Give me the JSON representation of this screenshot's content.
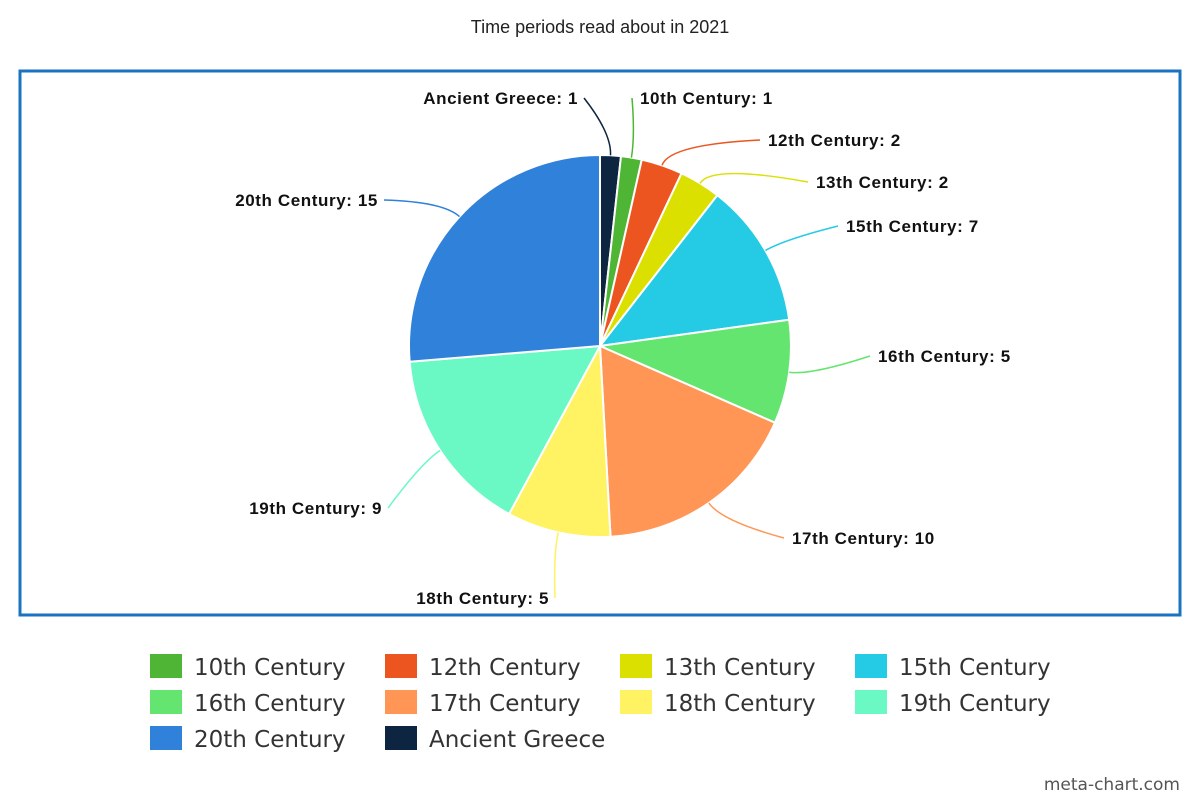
{
  "chart_data": {
    "type": "pie",
    "title": "Time periods read about in 2021",
    "slices": [
      {
        "label": "Ancient Greece",
        "value": 1,
        "color": "#0d2540"
      },
      {
        "label": "10th Century",
        "value": 1,
        "color": "#4fb535"
      },
      {
        "label": "12th Century",
        "value": 2,
        "color": "#ec5520"
      },
      {
        "label": "13th Century",
        "value": 2,
        "color": "#dbe000"
      },
      {
        "label": "15th Century",
        "value": 7,
        "color": "#25cbe5"
      },
      {
        "label": "16th Century",
        "value": 5,
        "color": "#64e56f"
      },
      {
        "label": "17th Century",
        "value": 10,
        "color": "#ff9655"
      },
      {
        "label": "18th Century",
        "value": 5,
        "color": "#fff263"
      },
      {
        "label": "19th Century",
        "value": 9,
        "color": "#6af9c4"
      },
      {
        "label": "20th Century",
        "value": 15,
        "color": "#3081d9"
      }
    ],
    "legend": {
      "placement": "bottom",
      "items": [
        {
          "label": "10th Century",
          "color": "#4fb535"
        },
        {
          "label": "12th Century",
          "color": "#ec5520"
        },
        {
          "label": "13th Century",
          "color": "#dbe000"
        },
        {
          "label": "15th Century",
          "color": "#25cbe5"
        },
        {
          "label": "16th Century",
          "color": "#64e56f"
        },
        {
          "label": "17th Century",
          "color": "#ff9655"
        },
        {
          "label": "18th Century",
          "color": "#fff263"
        },
        {
          "label": "19th Century",
          "color": "#6af9c4"
        },
        {
          "label": "20th Century",
          "color": "#3081d9"
        },
        {
          "label": "Ancient Greece",
          "color": "#0d2540"
        }
      ]
    },
    "frame_color": "#1a73c0"
  },
  "watermark": "meta-chart.com"
}
